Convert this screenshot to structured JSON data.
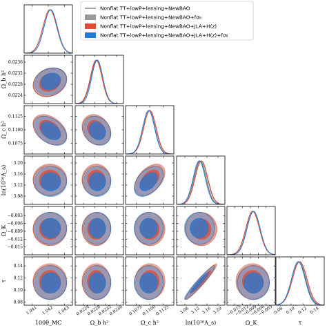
{
  "chart_data": {
    "type": "scatter",
    "subtype": "triangle-corner-plot",
    "parameters": [
      {
        "key": "theta",
        "label": "100θ_MC",
        "range": [
          1.0405,
          1.0435
        ],
        "ticks": [
          {
            "v": 1.041,
            "t": "1.041"
          },
          {
            "v": 1.042,
            "t": "1.042"
          },
          {
            "v": 1.043,
            "t": "1.043"
          }
        ]
      },
      {
        "key": "omb",
        "label": "Ω_b h²",
        "range": [
          0.0221,
          0.02385
        ],
        "ticks": [
          {
            "v": 0.0224,
            "t": "0.0224"
          },
          {
            "v": 0.0228,
            "t": "0.0228"
          },
          {
            "v": 0.0232,
            "t": "0.0232"
          },
          {
            "v": 0.0236,
            "t": "0.0236"
          }
        ]
      },
      {
        "key": "omc",
        "label": "Ω_c h²",
        "range": [
          0.1055,
          0.1145
        ],
        "ticks": [
          {
            "v": 0.1075,
            "t": "0.1075"
          },
          {
            "v": 0.11,
            "t": "0.1100"
          },
          {
            "v": 0.1125,
            "t": "0.1125"
          }
        ]
      },
      {
        "key": "lnAs",
        "label": "ln(10¹⁰A_s)",
        "range": [
          3.05,
          3.225
        ],
        "ticks": [
          {
            "v": 3.08,
            "t": "3.08"
          },
          {
            "v": 3.12,
            "t": "3.12"
          },
          {
            "v": 3.16,
            "t": "3.16"
          },
          {
            "v": 3.2,
            "t": "3.20"
          }
        ]
      },
      {
        "key": "omk",
        "label": "Ω_K",
        "range": [
          -0.018,
          0.0005
        ],
        "ticks": [
          {
            "v": -0.015,
            "t": "−0.015"
          },
          {
            "v": -0.012,
            "t": "−0.012"
          },
          {
            "v": -0.009,
            "t": "−0.009"
          },
          {
            "v": -0.006,
            "t": "−0.006"
          },
          {
            "v": -0.003,
            "t": "−0.003"
          }
        ]
      },
      {
        "key": "tau",
        "label": "τ",
        "range": [
          0.075,
          0.155
        ],
        "ticks": [
          {
            "v": 0.08,
            "t": "0.08"
          },
          {
            "v": 0.1,
            "t": "0.10"
          },
          {
            "v": 0.12,
            "t": "0.12"
          },
          {
            "v": 0.14,
            "t": "0.14"
          }
        ]
      }
    ],
    "series": [
      {
        "name": "Nonflat TT+lowP+lensing+NewBAO",
        "color": "#6b6b6b",
        "style": "line",
        "mean": [
          1.0421,
          0.02288,
          0.10985,
          3.135,
          -0.0079,
          0.1125
        ],
        "sigma": [
          0.00042,
          0.00021,
          0.0011,
          0.022,
          0.0025,
          0.0115
        ]
      },
      {
        "name": "Nonflat TT+lowP+lensing+NewBAO+fσ₈",
        "color": "#9a9a9a",
        "style": "filled",
        "mean": [
          1.0421,
          0.02286,
          0.10995,
          3.138,
          -0.0081,
          0.1135
        ],
        "sigma": [
          0.00042,
          0.00021,
          0.00115,
          0.023,
          0.0026,
          0.0118
        ]
      },
      {
        "name": "Nonflat TT+lowP+lensing+NewBAO+JLA+H(z)",
        "color": "#e34a33",
        "style": "filled",
        "mean": [
          1.0421,
          0.02286,
          0.11005,
          3.14,
          -0.0082,
          0.1145
        ],
        "sigma": [
          0.00043,
          0.00021,
          0.00115,
          0.023,
          0.0026,
          0.012
        ]
      },
      {
        "name": "Nonflat TT+lowP+lensing+NewBAO+JLA+H(z)+fσ₈",
        "color": "#1f78d8",
        "style": "filled",
        "mean": [
          1.04215,
          0.0229,
          0.1098,
          3.132,
          -0.0078,
          0.112
        ],
        "sigma": [
          0.00041,
          0.0002,
          0.0011,
          0.022,
          0.0025,
          0.0112
        ]
      }
    ],
    "correlations": [
      [
        1,
        0.2,
        -0.4,
        0.0,
        0.0,
        0.0
      ],
      [
        0.2,
        1,
        -0.2,
        0.0,
        0.0,
        0.0
      ],
      [
        -0.4,
        -0.2,
        1,
        0.45,
        0.0,
        0.0
      ],
      [
        0.0,
        0.0,
        0.45,
        1,
        0.0,
        0.96
      ],
      [
        0.0,
        0.0,
        0.0,
        0.0,
        1,
        0.0
      ],
      [
        0.0,
        0.0,
        0.0,
        0.96,
        0.0,
        1
      ]
    ],
    "contour_levels": [
      "68%",
      "95%"
    ],
    "legend_position": "upper-right"
  }
}
